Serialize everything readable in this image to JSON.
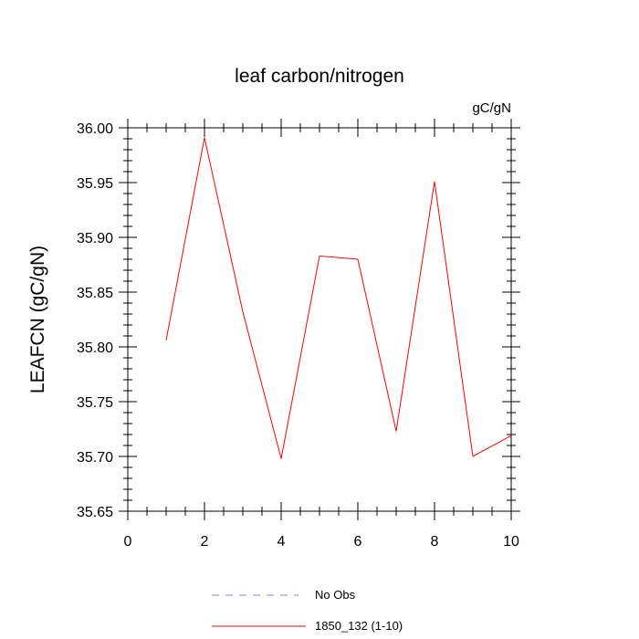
{
  "chart_data": {
    "type": "line",
    "title": "leaf carbon/nitrogen",
    "units": "gC/gN",
    "xlabel": "",
    "ylabel": "LEAFCN  (gC/gN)",
    "xlim": [
      0,
      10
    ],
    "ylim": [
      35.65,
      36.0
    ],
    "x_ticks": [
      0,
      2,
      4,
      6,
      8,
      10
    ],
    "x_tick_labels": [
      "0",
      "2",
      "4",
      "6",
      "8",
      "10"
    ],
    "y_ticks": [
      35.65,
      35.7,
      35.75,
      35.8,
      35.85,
      35.9,
      35.95,
      36.0
    ],
    "y_tick_labels": [
      "35.65",
      "35.70",
      "35.75",
      "35.80",
      "35.85",
      "35.90",
      "35.95",
      "36.00"
    ],
    "grid": false,
    "legend_position": "bottom",
    "series": [
      {
        "name": "No Obs",
        "color": "#8080ff",
        "dash": true,
        "x": [],
        "y": []
      },
      {
        "name": "1850_132 (1-10)",
        "color": "#ff0000",
        "dash": false,
        "x": [
          1,
          2,
          3,
          4,
          5,
          6,
          7,
          8,
          9,
          10
        ],
        "y": [
          35.806,
          35.991,
          35.832,
          35.698,
          35.883,
          35.88,
          35.723,
          35.951,
          35.7,
          35.719
        ]
      }
    ]
  }
}
